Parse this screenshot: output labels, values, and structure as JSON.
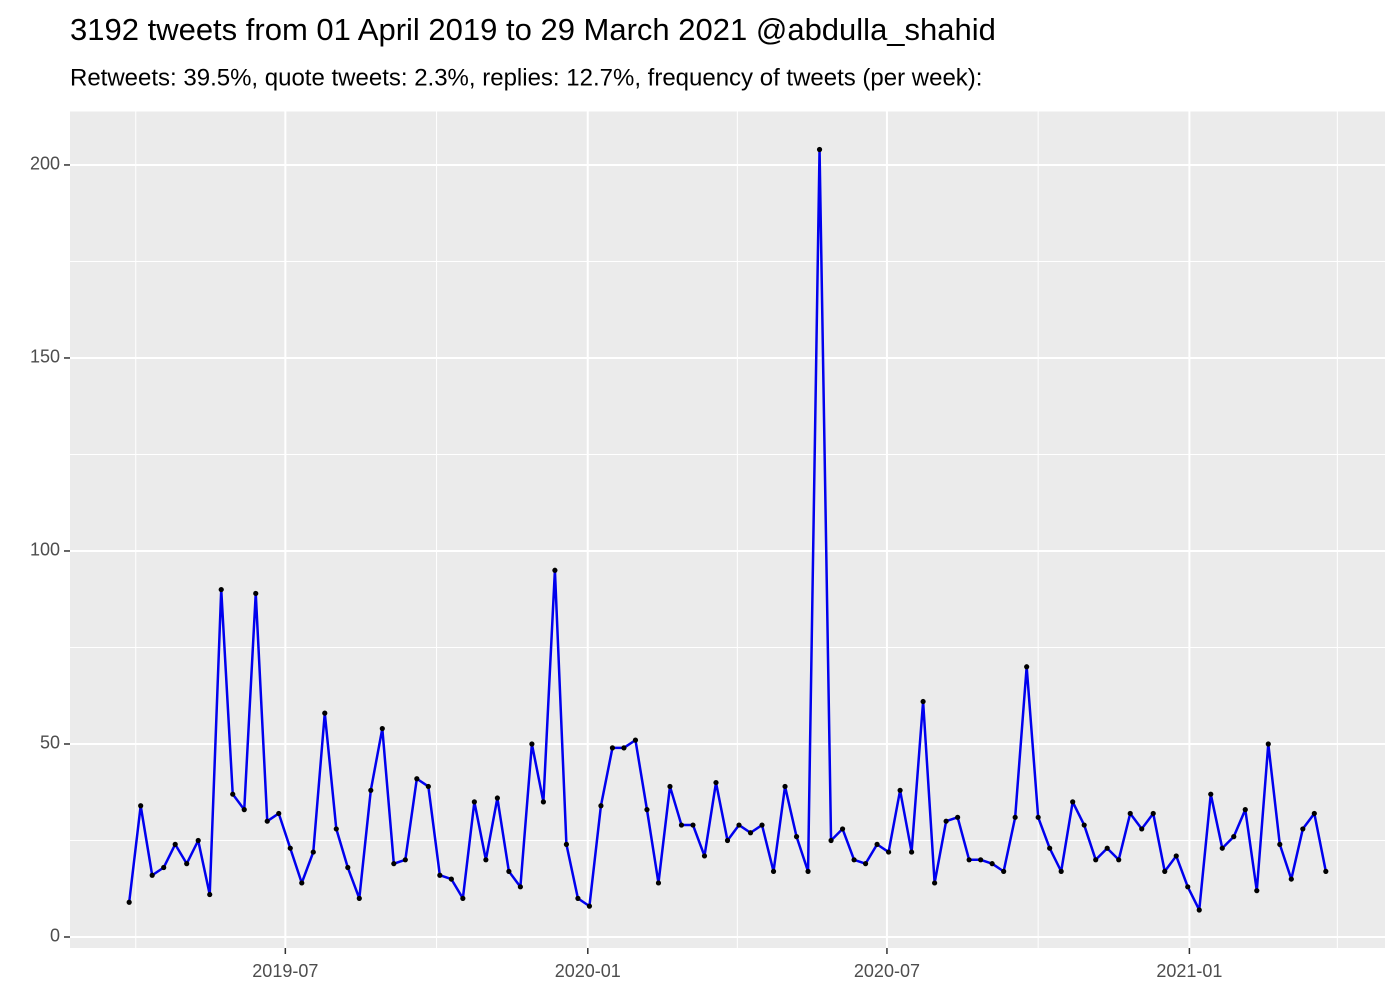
{
  "chart_data": {
    "type": "line",
    "title": "3192 tweets from 01 April 2019 to 29 March 2021 @abdulla_shahid",
    "subtitle": "Retweets: 39.5%, quote tweets: 2.3%, replies: 12.7%, frequency of tweets (per week):",
    "x": [
      "2019-03-28",
      "2019-04-04",
      "2019-04-11",
      "2019-04-18",
      "2019-04-25",
      "2019-05-02",
      "2019-05-09",
      "2019-05-16",
      "2019-05-23",
      "2019-05-30",
      "2019-06-06",
      "2019-06-13",
      "2019-06-20",
      "2019-06-27",
      "2019-07-04",
      "2019-07-11",
      "2019-07-18",
      "2019-07-25",
      "2019-08-01",
      "2019-08-08",
      "2019-08-15",
      "2019-08-22",
      "2019-08-29",
      "2019-09-05",
      "2019-09-12",
      "2019-09-19",
      "2019-09-26",
      "2019-10-03",
      "2019-10-10",
      "2019-10-17",
      "2019-10-24",
      "2019-10-31",
      "2019-11-07",
      "2019-11-14",
      "2019-11-21",
      "2019-11-28",
      "2019-12-05",
      "2019-12-12",
      "2019-12-19",
      "2019-12-26",
      "2020-01-02",
      "2020-01-09",
      "2020-01-16",
      "2020-01-23",
      "2020-01-30",
      "2020-02-06",
      "2020-02-13",
      "2020-02-20",
      "2020-02-27",
      "2020-03-05",
      "2020-03-12",
      "2020-03-19",
      "2020-03-26",
      "2020-04-02",
      "2020-04-09",
      "2020-04-16",
      "2020-04-23",
      "2020-04-30",
      "2020-05-07",
      "2020-05-14",
      "2020-05-21",
      "2020-05-28",
      "2020-06-04",
      "2020-06-11",
      "2020-06-18",
      "2020-06-25",
      "2020-07-02",
      "2020-07-09",
      "2020-07-16",
      "2020-07-23",
      "2020-07-30",
      "2020-08-06",
      "2020-08-13",
      "2020-08-20",
      "2020-08-27",
      "2020-09-03",
      "2020-09-10",
      "2020-09-17",
      "2020-09-24",
      "2020-10-01",
      "2020-10-08",
      "2020-10-15",
      "2020-10-22",
      "2020-10-29",
      "2020-11-05",
      "2020-11-12",
      "2020-11-19",
      "2020-11-26",
      "2020-12-03",
      "2020-12-10",
      "2020-12-17",
      "2020-12-24",
      "2020-12-31",
      "2021-01-07",
      "2021-01-14",
      "2021-01-21",
      "2021-01-28",
      "2021-02-04",
      "2021-02-11",
      "2021-02-18",
      "2021-02-25",
      "2021-03-04",
      "2021-03-11",
      "2021-03-18",
      "2021-03-25"
    ],
    "series": [
      {
        "name": "tweets",
        "color": "#0000ee",
        "point_color": "#000000",
        "values": [
          9,
          34,
          16,
          18,
          24,
          19,
          25,
          11,
          90,
          37,
          33,
          89,
          30,
          32,
          23,
          14,
          22,
          58,
          28,
          18,
          10,
          38,
          54,
          19,
          20,
          41,
          39,
          16,
          15,
          10,
          35,
          20,
          36,
          17,
          13,
          50,
          35,
          95,
          24,
          10,
          8,
          34,
          49,
          49,
          51,
          33,
          14,
          39,
          29,
          29,
          21,
          40,
          25,
          29,
          27,
          29,
          17,
          39,
          26,
          17,
          204,
          25,
          28,
          20,
          19,
          24,
          22,
          38,
          22,
          61,
          14,
          30,
          31,
          20,
          20,
          19,
          17,
          31,
          70,
          31,
          23,
          17,
          35,
          29,
          20,
          23,
          20,
          32,
          28,
          32,
          17,
          21,
          13,
          7,
          37,
          23,
          26,
          33,
          12,
          50,
          24,
          15,
          28,
          32,
          17
        ]
      }
    ],
    "xlim": [
      "2019-02-20",
      "2021-04-30"
    ],
    "xticks": [
      {
        "value": "2019-07-01",
        "label": "2019-07"
      },
      {
        "value": "2020-01-01",
        "label": "2020-01"
      },
      {
        "value": "2020-07-01",
        "label": "2020-07"
      },
      {
        "value": "2021-01-01",
        "label": "2021-01"
      }
    ],
    "xminorticks": [
      "2019-04-01",
      "2019-10-01",
      "2020-04-01",
      "2020-10-01",
      "2021-04-01"
    ],
    "ylim": [
      -2.85,
      213.85
    ],
    "yticks": [
      0,
      50,
      100,
      150,
      200
    ],
    "yminorticks": [
      25,
      75,
      125,
      175
    ],
    "grid": true
  }
}
